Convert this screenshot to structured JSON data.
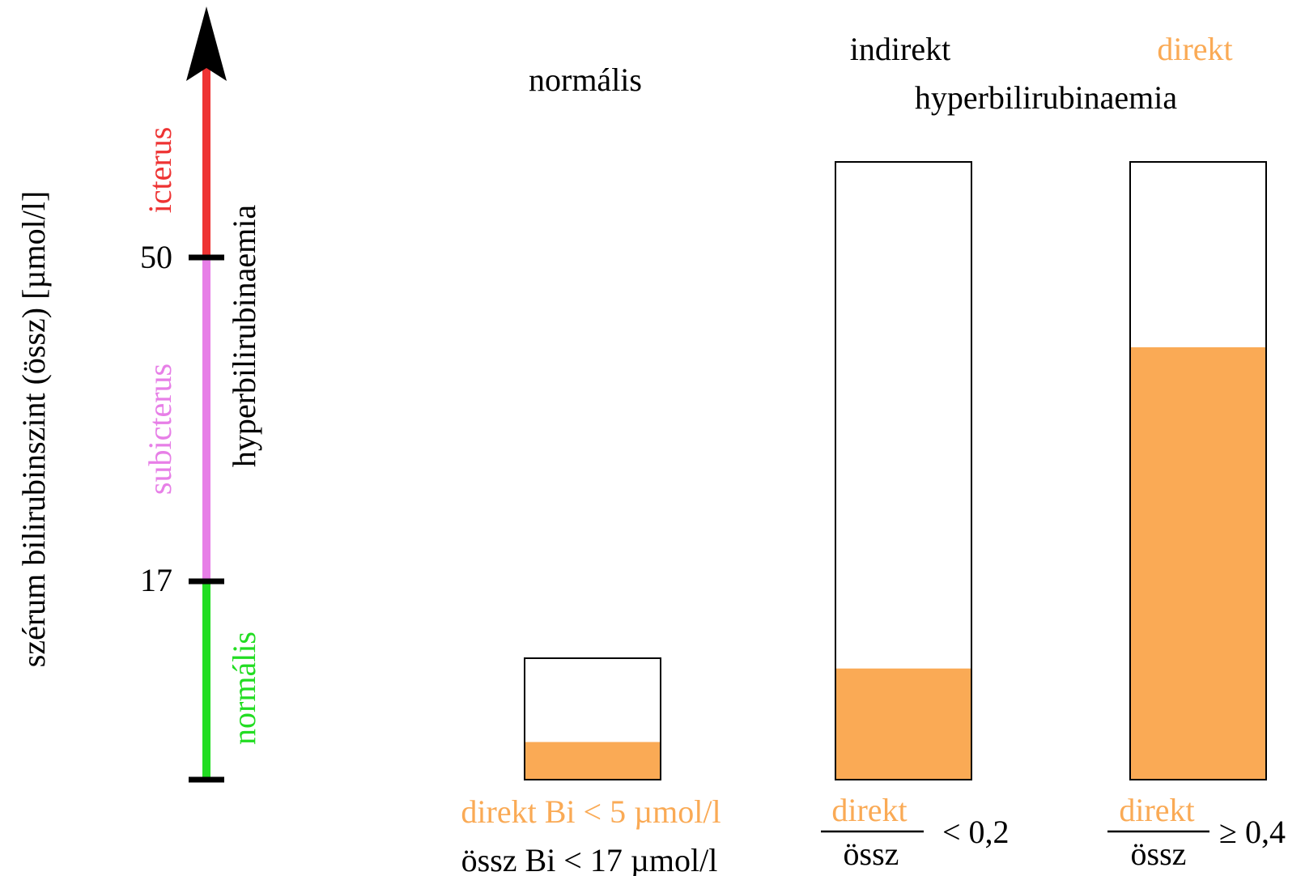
{
  "colors": {
    "orange": "#FAAA55",
    "red": "#EE3333",
    "violet": "#E77FE7",
    "green": "#22DD22",
    "black": "#000000"
  },
  "axis": {
    "label": "szérum bilirubinszint (össz) [µmol/l]",
    "tick_50": "50",
    "tick_17": "17",
    "range_normal": "normális",
    "range_subicterus": "subicterus",
    "range_icterus": "icterus",
    "hyper_label": "hyperbilirubinaemia"
  },
  "columns": {
    "normal": {
      "title": "normális",
      "direct_fraction": 0.31,
      "caption_line1": "direkt Bi < 5 µmol/l",
      "caption_line2": "össz Bi < 17 µmol/l"
    },
    "indirect": {
      "title": "indirekt",
      "direct_fraction": 0.18,
      "numerator": "direkt",
      "denominator": "össz",
      "relation": "< 0,2"
    },
    "direct": {
      "title": "direkt",
      "direct_fraction": 0.7,
      "numerator": "direkt",
      "denominator": "össz",
      "relation": "≥ 0,4"
    },
    "hyper_title": "hyperbilirubinaemia"
  }
}
